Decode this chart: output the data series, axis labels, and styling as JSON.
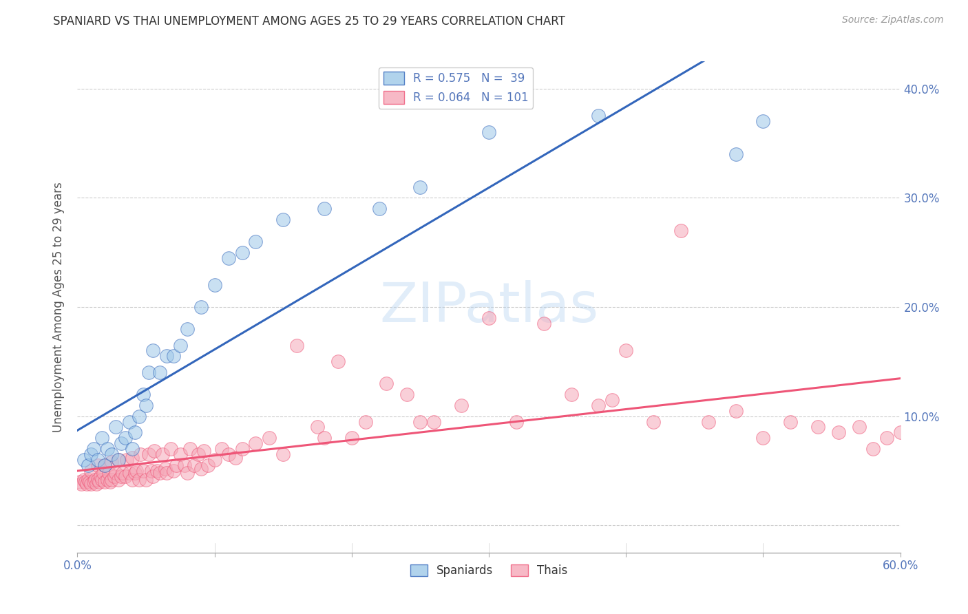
{
  "title": "SPANIARD VS THAI UNEMPLOYMENT AMONG AGES 25 TO 29 YEARS CORRELATION CHART",
  "source": "Source: ZipAtlas.com",
  "ylabel": "Unemployment Among Ages 25 to 29 years",
  "xlim": [
    0.0,
    0.6
  ],
  "ylim": [
    -0.025,
    0.425
  ],
  "yticks": [
    0.0,
    0.1,
    0.2,
    0.3,
    0.4
  ],
  "ytick_labels": [
    "",
    "10.0%",
    "20.0%",
    "30.0%",
    "40.0%"
  ],
  "xticks": [
    0.0,
    0.1,
    0.2,
    0.3,
    0.4,
    0.5,
    0.6
  ],
  "xtick_labels": [
    "0.0%",
    "",
    "",
    "",
    "",
    "",
    "60.0%"
  ],
  "legend_blue_R": "R = 0.575",
  "legend_blue_N": "N =  39",
  "legend_pink_R": "R = 0.064",
  "legend_pink_N": "N = 101",
  "watermark": "ZIPatlas",
  "blue_color": "#9EC8E8",
  "pink_color": "#F5A8B8",
  "blue_line_color": "#3366BB",
  "pink_line_color": "#EE5577",
  "spaniards_x": [
    0.005,
    0.008,
    0.01,
    0.012,
    0.015,
    0.018,
    0.02,
    0.022,
    0.025,
    0.028,
    0.03,
    0.032,
    0.035,
    0.038,
    0.04,
    0.042,
    0.045,
    0.048,
    0.05,
    0.052,
    0.055,
    0.06,
    0.065,
    0.07,
    0.075,
    0.08,
    0.09,
    0.1,
    0.11,
    0.12,
    0.13,
    0.15,
    0.18,
    0.22,
    0.25,
    0.3,
    0.38,
    0.48,
    0.5
  ],
  "spaniards_y": [
    0.06,
    0.055,
    0.065,
    0.07,
    0.06,
    0.08,
    0.055,
    0.07,
    0.065,
    0.09,
    0.06,
    0.075,
    0.08,
    0.095,
    0.07,
    0.085,
    0.1,
    0.12,
    0.11,
    0.14,
    0.16,
    0.14,
    0.155,
    0.155,
    0.165,
    0.18,
    0.2,
    0.22,
    0.245,
    0.25,
    0.26,
    0.28,
    0.29,
    0.29,
    0.31,
    0.36,
    0.375,
    0.34,
    0.37
  ],
  "thais_x": [
    0.002,
    0.003,
    0.005,
    0.006,
    0.007,
    0.008,
    0.009,
    0.01,
    0.01,
    0.012,
    0.013,
    0.014,
    0.015,
    0.015,
    0.016,
    0.017,
    0.018,
    0.019,
    0.02,
    0.02,
    0.022,
    0.023,
    0.024,
    0.025,
    0.025,
    0.027,
    0.028,
    0.03,
    0.03,
    0.032,
    0.033,
    0.035,
    0.036,
    0.038,
    0.04,
    0.04,
    0.042,
    0.043,
    0.045,
    0.046,
    0.048,
    0.05,
    0.052,
    0.054,
    0.055,
    0.056,
    0.058,
    0.06,
    0.062,
    0.064,
    0.065,
    0.068,
    0.07,
    0.072,
    0.075,
    0.078,
    0.08,
    0.082,
    0.085,
    0.088,
    0.09,
    0.092,
    0.095,
    0.1,
    0.105,
    0.11,
    0.115,
    0.12,
    0.13,
    0.14,
    0.15,
    0.16,
    0.175,
    0.19,
    0.2,
    0.21,
    0.225,
    0.24,
    0.26,
    0.28,
    0.3,
    0.32,
    0.34,
    0.36,
    0.38,
    0.4,
    0.42,
    0.44,
    0.46,
    0.48,
    0.5,
    0.52,
    0.54,
    0.555,
    0.57,
    0.58,
    0.59,
    0.6,
    0.39,
    0.25,
    0.18
  ],
  "thais_y": [
    0.04,
    0.038,
    0.042,
    0.04,
    0.038,
    0.042,
    0.04,
    0.038,
    0.05,
    0.04,
    0.042,
    0.038,
    0.042,
    0.055,
    0.04,
    0.045,
    0.042,
    0.048,
    0.04,
    0.055,
    0.042,
    0.048,
    0.04,
    0.042,
    0.058,
    0.045,
    0.048,
    0.042,
    0.06,
    0.045,
    0.048,
    0.045,
    0.06,
    0.048,
    0.042,
    0.062,
    0.048,
    0.05,
    0.042,
    0.065,
    0.05,
    0.042,
    0.065,
    0.05,
    0.045,
    0.068,
    0.05,
    0.048,
    0.065,
    0.052,
    0.048,
    0.07,
    0.05,
    0.055,
    0.065,
    0.055,
    0.048,
    0.07,
    0.055,
    0.065,
    0.052,
    0.068,
    0.055,
    0.06,
    0.07,
    0.065,
    0.062,
    0.07,
    0.075,
    0.08,
    0.065,
    0.165,
    0.09,
    0.15,
    0.08,
    0.095,
    0.13,
    0.12,
    0.095,
    0.11,
    0.19,
    0.095,
    0.185,
    0.12,
    0.11,
    0.16,
    0.095,
    0.27,
    0.095,
    0.105,
    0.08,
    0.095,
    0.09,
    0.085,
    0.09,
    0.07,
    0.08,
    0.085,
    0.115,
    0.095,
    0.08
  ]
}
